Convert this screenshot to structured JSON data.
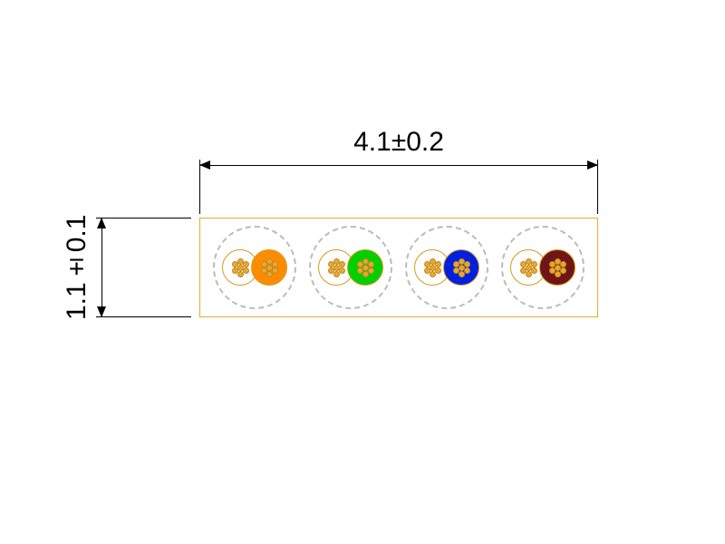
{
  "dimensions": {
    "width_label": "4.1±0.2",
    "height_label": "1.1±0.1"
  },
  "diagram": {
    "type": "cable-cross-section",
    "jacket_border_color": "#e5ab2e",
    "jacket_fill_color": "#ffffff",
    "pair_outline_color": "#bbbbbb",
    "pair_outline_style": "dashed",
    "conductor_border_color": "#d49a1f",
    "strand_fill_color": "#e8a832",
    "strand_border_color": "#c18a20",
    "strands_per_conductor": 7,
    "dimension_line_color": "#000000",
    "label_fontsize": 30,
    "pairs": [
      {
        "left_color": "#ffffff",
        "right_color": "#ff8c00"
      },
      {
        "left_color": "#ffffff",
        "right_color": "#00d000"
      },
      {
        "left_color": "#ffffff",
        "right_color": "#0020e0"
      },
      {
        "left_color": "#ffffff",
        "right_color": "#701515"
      }
    ]
  }
}
